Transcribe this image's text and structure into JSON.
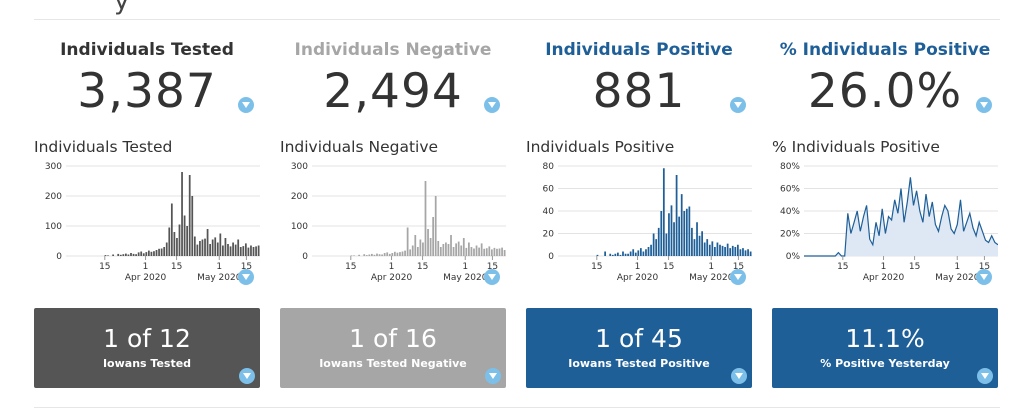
{
  "header": {
    "title_fragment": "y"
  },
  "colors": {
    "dark": "#555555",
    "gray": "#a6a6a6",
    "blue": "#1f5f98",
    "filter": "#7cc0ea"
  },
  "panels": [
    {
      "kpi_title": "Individuals Tested",
      "kpi_value": "3,387",
      "chart_title": "Individuals Tested",
      "tile_big": "1 of 12",
      "tile_small": "Iowans Tested",
      "color": "#555555",
      "title_color": "#333333"
    },
    {
      "kpi_title": "Individuals Negative",
      "kpi_value": "2,494",
      "chart_title": "Individuals Negative",
      "tile_big": "1 of 16",
      "tile_small": "Iowans Tested Negative",
      "color": "#a6a6a6",
      "title_color": "#a6a6a6"
    },
    {
      "kpi_title": "Individuals Positive",
      "kpi_value": "881",
      "chart_title": "Individuals Positive",
      "tile_big": "1 of 45",
      "tile_small": "Iowans Tested Positive",
      "color": "#1f5f98",
      "title_color": "#1f5f98"
    },
    {
      "kpi_title": "% Individuals Positive",
      "kpi_value": "26.0%",
      "chart_title": "% Individuals Positive",
      "tile_big": "11.1%",
      "tile_small": "% Positive Yesterday",
      "color": "#1f5f98",
      "title_color": "#1f5f98"
    }
  ],
  "chart_data": [
    {
      "type": "bar",
      "title": "Individuals Tested",
      "y_ticks": [
        "0",
        "100",
        "200",
        "300"
      ],
      "ylim": [
        0,
        300
      ],
      "x_ticks": [
        "15",
        "1",
        "15",
        "1",
        "15"
      ],
      "x_month_labels": [
        "Apr 2020",
        "May 2020"
      ],
      "values": [
        0,
        0,
        0,
        0,
        0,
        0,
        0,
        0,
        0,
        0,
        0,
        0,
        0,
        0,
        0,
        3,
        2,
        0,
        5,
        0,
        7,
        4,
        6,
        8,
        5,
        10,
        7,
        6,
        12,
        15,
        9,
        13,
        18,
        14,
        16,
        20,
        24,
        25,
        30,
        45,
        95,
        175,
        80,
        60,
        105,
        280,
        135,
        100,
        270,
        200,
        65,
        38,
        50,
        55,
        58,
        90,
        40,
        55,
        62,
        45,
        75,
        35,
        60,
        40,
        32,
        45,
        38,
        55,
        30,
        33,
        42,
        28,
        35,
        30,
        32,
        35
      ]
    },
    {
      "type": "bar",
      "title": "Individuals Negative",
      "y_ticks": [
        "0",
        "100",
        "200",
        "300"
      ],
      "ylim": [
        0,
        300
      ],
      "x_ticks": [
        "15",
        "1",
        "15",
        "1",
        "15"
      ],
      "x_month_labels": [
        "Apr 2020",
        "May 2020"
      ],
      "values": [
        0,
        0,
        0,
        0,
        0,
        0,
        0,
        0,
        0,
        0,
        0,
        0,
        0,
        0,
        0,
        2,
        2,
        0,
        4,
        0,
        6,
        3,
        5,
        7,
        4,
        8,
        6,
        5,
        10,
        12,
        7,
        10,
        14,
        11,
        13,
        15,
        18,
        95,
        22,
        35,
        70,
        30,
        55,
        45,
        250,
        90,
        60,
        130,
        200,
        50,
        30,
        40,
        45,
        40,
        70,
        30,
        42,
        48,
        35,
        60,
        27,
        45,
        30,
        25,
        35,
        28,
        42,
        24,
        26,
        32,
        22,
        27,
        24,
        25,
        28,
        20
      ]
    },
    {
      "type": "bar",
      "title": "Individuals Positive",
      "y_ticks": [
        "0",
        "20",
        "40",
        "60",
        "80"
      ],
      "ylim": [
        0,
        80
      ],
      "x_ticks": [
        "15",
        "1",
        "15",
        "1",
        "15"
      ],
      "x_month_labels": [
        "Apr 2020",
        "May 2020"
      ],
      "values": [
        0,
        0,
        0,
        0,
        0,
        0,
        0,
        0,
        0,
        0,
        0,
        0,
        0,
        0,
        0,
        1,
        0,
        0,
        4,
        0,
        2,
        1,
        2,
        3,
        1,
        4,
        2,
        2,
        4,
        6,
        3,
        5,
        7,
        4,
        6,
        8,
        10,
        20,
        15,
        25,
        40,
        78,
        20,
        38,
        45,
        30,
        72,
        35,
        55,
        40,
        42,
        44,
        25,
        15,
        30,
        18,
        22,
        12,
        15,
        10,
        13,
        8,
        12,
        10,
        9,
        8,
        11,
        7,
        9,
        8,
        10,
        6,
        7,
        5,
        6,
        4
      ]
    },
    {
      "type": "area",
      "title": "% Individuals Positive",
      "y_ticks": [
        "0%",
        "20%",
        "40%",
        "60%",
        "80%"
      ],
      "ylim": [
        0,
        80
      ],
      "x_ticks": [
        "15",
        "1",
        "15",
        "1",
        "15"
      ],
      "x_month_labels": [
        "Apr 2020",
        "May 2020"
      ],
      "values": [
        0,
        0,
        0,
        0,
        0,
        0,
        0,
        0,
        0,
        0,
        0,
        3,
        0,
        0,
        38,
        20,
        30,
        40,
        22,
        35,
        45,
        15,
        10,
        30,
        18,
        42,
        20,
        35,
        32,
        50,
        38,
        60,
        30,
        48,
        70,
        45,
        58,
        40,
        30,
        55,
        35,
        48,
        28,
        22,
        35,
        45,
        40,
        24,
        20,
        28,
        50,
        22,
        30,
        38,
        25,
        18,
        30,
        22,
        14,
        12,
        18,
        12,
        10
      ]
    }
  ]
}
